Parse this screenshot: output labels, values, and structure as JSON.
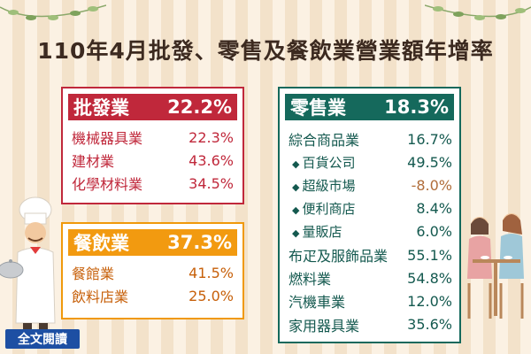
{
  "title": "110年4月批發、零售及餐飲業營業額年增率",
  "wholesale": {
    "name": "批發業",
    "value": "22.2%",
    "items": [
      {
        "label": "機械器具業",
        "value": "22.3%"
      },
      {
        "label": "建材業",
        "value": "43.6%"
      },
      {
        "label": "化學材料業",
        "value": "34.5%"
      }
    ]
  },
  "food": {
    "name": "餐飲業",
    "value": "37.3%",
    "items": [
      {
        "label": "餐館業",
        "value": "41.5%"
      },
      {
        "label": "飲料店業",
        "value": "25.0%"
      }
    ]
  },
  "retail": {
    "name": "零售業",
    "value": "18.3%",
    "items": [
      {
        "label": "綜合商品業",
        "value": "16.7%"
      },
      {
        "label": "百貨公司",
        "value": "49.5%"
      },
      {
        "label": "超級市場",
        "value": "-8.0%"
      },
      {
        "label": "便利商店",
        "value": "8.4%"
      },
      {
        "label": "量販店",
        "value": "6.0%"
      },
      {
        "label": "布疋及服飾品業",
        "value": "55.1%"
      },
      {
        "label": "燃料業",
        "value": "54.8%"
      },
      {
        "label": "汽機車業",
        "value": "12.0%"
      },
      {
        "label": "家用器具業",
        "value": "35.6%"
      }
    ]
  },
  "read_more": "全文閱讀",
  "colors": {
    "wholesale": "#c0283b",
    "food": "#f29a10",
    "retail": "#15695c",
    "negative": "#b06d3a",
    "button": "#1d4fa3"
  }
}
